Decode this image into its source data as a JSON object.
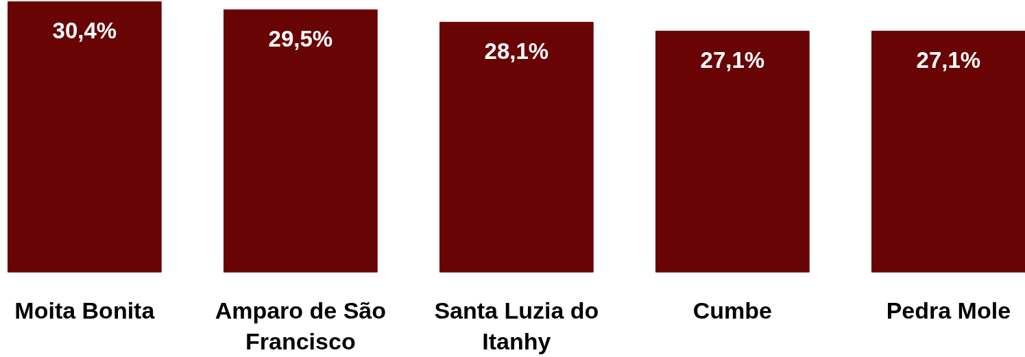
{
  "chart_data": {
    "type": "bar",
    "categories": [
      "Moita Bonita",
      "Amparo de São Francisco",
      "Santa Luzia do Itanhy",
      "Cumbe",
      "Pedra Mole"
    ],
    "values": [
      30.4,
      29.5,
      28.1,
      27.1,
      27.1
    ],
    "value_labels": [
      "30,4%",
      "29,5%",
      "28,1%",
      "27,1%",
      "27,1%"
    ],
    "color": "#680404",
    "tick_labels": "x",
    "grid": false
  }
}
